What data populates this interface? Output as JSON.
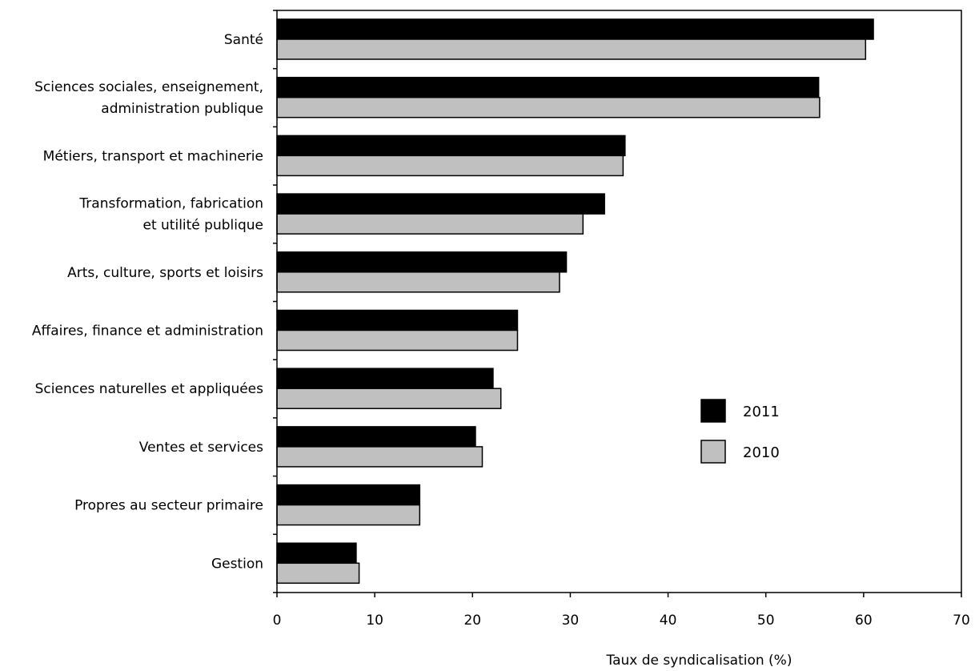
{
  "chart_data": {
    "type": "bar",
    "orientation": "horizontal",
    "categories": [
      [
        "Santé"
      ],
      [
        "Sciences sociales, enseignement,",
        "administration publique"
      ],
      [
        "Métiers, transport et machinerie"
      ],
      [
        "Transformation, fabrication",
        "et utilité publique"
      ],
      [
        "Arts, culture, sports et loisirs"
      ],
      [
        "Affaires, finance et administration"
      ],
      [
        "Sciences naturelles et appliquées"
      ],
      [
        "Ventes et services"
      ],
      [
        "Propres au secteur primaire"
      ],
      [
        "Gestion"
      ]
    ],
    "series": [
      {
        "name": "2011",
        "color": "#000000",
        "values": [
          61.0,
          55.4,
          35.6,
          33.5,
          29.6,
          24.6,
          22.1,
          20.3,
          14.6,
          8.1
        ]
      },
      {
        "name": "2010",
        "color": "#c0c0c0",
        "values": [
          60.2,
          55.5,
          35.4,
          31.3,
          28.9,
          24.6,
          22.9,
          21.0,
          14.6,
          8.4
        ]
      }
    ],
    "title": "",
    "xlabel": "Taux de syndicalisation (%)",
    "ylabel": "",
    "xlim": [
      0,
      70
    ],
    "xticks": [
      "0",
      "10",
      "20",
      "30",
      "40",
      "50",
      "60",
      "70"
    ],
    "grid": false,
    "legend_position": "right"
  }
}
